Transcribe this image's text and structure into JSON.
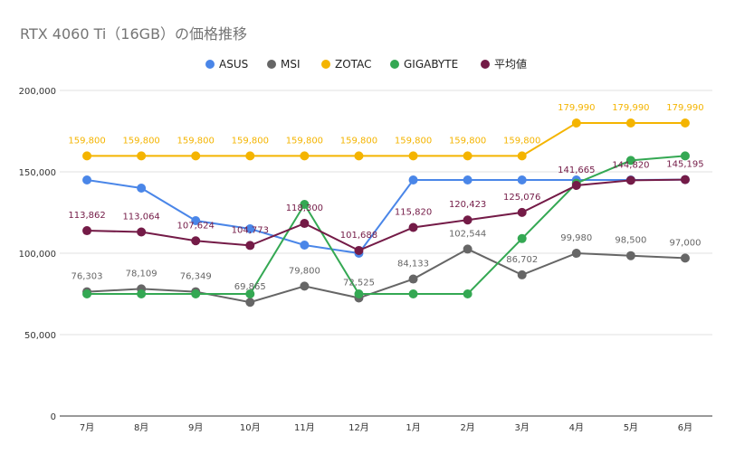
{
  "chart_data": {
    "type": "line",
    "title": "RTX 4060 Ti（16GB）の価格推移",
    "categories": [
      "7月",
      "8月",
      "9月",
      "10月",
      "11月",
      "12月",
      "1月",
      "2月",
      "3月",
      "4月",
      "5月",
      "6月"
    ],
    "ylim": [
      0,
      200000
    ],
    "yticks": [
      0,
      50000,
      100000,
      150000,
      200000
    ],
    "ytick_labels": [
      "0",
      "50,000",
      "100,000",
      "150,000",
      "200,000"
    ],
    "grid": true,
    "legend_position": "top",
    "series": [
      {
        "name": "ASUS",
        "color": "#4a86e8",
        "values": [
          145000,
          140000,
          120000,
          115000,
          105000,
          100000,
          145000,
          145000,
          145000,
          145000,
          145000,
          145195
        ],
        "labels": [
          null,
          null,
          null,
          null,
          null,
          null,
          null,
          null,
          null,
          null,
          null,
          null
        ]
      },
      {
        "name": "MSI",
        "color": "#666666",
        "values": [
          76303,
          78109,
          76349,
          69865,
          79800,
          72525,
          84133,
          102544,
          86702,
          99980,
          98500,
          97000
        ],
        "labels": [
          "76,303",
          "78,109",
          "76,349",
          "69,865",
          "79,800",
          "72,525",
          "84,133",
          "102,544",
          "86,702",
          "99,980",
          "98,500",
          "97,000"
        ]
      },
      {
        "name": "ZOTAC",
        "color": "#f4b400",
        "values": [
          159800,
          159800,
          159800,
          159800,
          159800,
          159800,
          159800,
          159800,
          159800,
          179990,
          179990,
          179990
        ],
        "labels": [
          "159,800",
          "159,800",
          "159,800",
          "159,800",
          "159,800",
          "159,800",
          "159,800",
          "159,800",
          "159,800",
          "179,990",
          "179,990",
          "179,990"
        ]
      },
      {
        "name": "GIGABYTE",
        "color": "#34a853",
        "values": [
          75000,
          75000,
          75000,
          75000,
          130000,
          75000,
          75000,
          75000,
          109000,
          143000,
          157000,
          159800
        ],
        "labels": [
          null,
          null,
          null,
          null,
          null,
          null,
          null,
          null,
          null,
          null,
          null,
          null
        ]
      },
      {
        "name": "平均値",
        "color": "#741b47",
        "values": [
          113862,
          113064,
          107624,
          104773,
          118300,
          101688,
          115820,
          120423,
          125076,
          141665,
          144820,
          145195
        ],
        "labels": [
          "113,862",
          "113,064",
          "107,624",
          "104,773",
          "118,300",
          "101,688",
          "115,820",
          "120,423",
          "125,076",
          "141,665",
          "144,820",
          "145,195"
        ]
      }
    ]
  }
}
